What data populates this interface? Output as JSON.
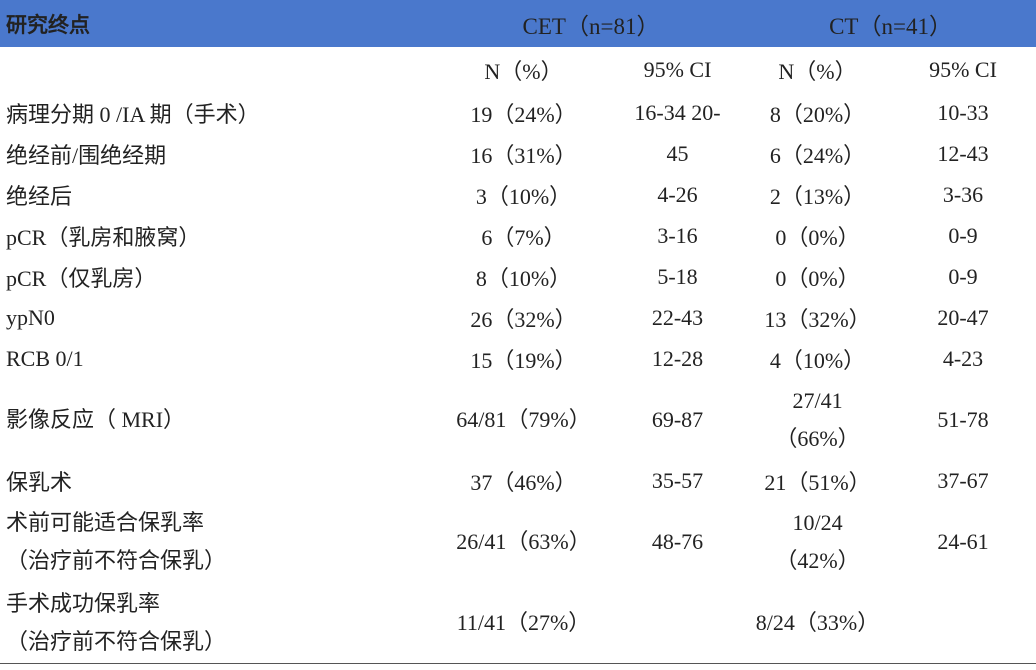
{
  "table": {
    "header": [
      "研究终点",
      "CET（n=81）",
      "CT（n=41）"
    ],
    "sub_header": [
      "N（%）",
      "95% CI",
      "N（%）",
      "95% CI"
    ],
    "rows": [
      [
        [
          "病理分期 0 /IA 期（手术）"
        ],
        [
          "19（24%）"
        ],
        [
          "16-34 20-"
        ],
        [
          "8（20%）"
        ],
        [
          "10-33"
        ]
      ],
      [
        [
          "绝经前/围绝经期"
        ],
        [
          "16（31%）"
        ],
        [
          "45"
        ],
        [
          "6（24%）"
        ],
        [
          "12-43"
        ]
      ],
      [
        [
          "绝经后"
        ],
        [
          "3（10%）"
        ],
        [
          "4-26"
        ],
        [
          "2（13%）"
        ],
        [
          "3-36"
        ]
      ],
      [
        [
          "pCR（乳房和腋窝）"
        ],
        [
          "6（7%）"
        ],
        [
          "3-16"
        ],
        [
          "0（0%）"
        ],
        [
          "0-9"
        ]
      ],
      [
        [
          "pCR（仅乳房）"
        ],
        [
          "8（10%）"
        ],
        [
          "5-18"
        ],
        [
          "0（0%）"
        ],
        [
          "0-9"
        ]
      ],
      [
        [
          "ypN0"
        ],
        [
          "26（32%）"
        ],
        [
          "22-43"
        ],
        [
          "13（32%）"
        ],
        [
          "20-47"
        ]
      ],
      [
        [
          "RCB 0/1"
        ],
        [
          "15（19%）"
        ],
        [
          "12-28"
        ],
        [
          "4（10%）"
        ],
        [
          "4-23"
        ]
      ],
      [
        [
          "影像反应（ MRI）"
        ],
        [
          "64/81（79%）"
        ],
        [
          "69-87"
        ],
        [
          "27/41",
          "（66%）"
        ],
        [
          "51-78"
        ]
      ],
      [
        [
          "保乳术"
        ],
        [
          "37（46%）"
        ],
        [
          "35-57"
        ],
        [
          "21（51%）"
        ],
        [
          "37-67"
        ]
      ],
      [
        [
          "术前可能适合保乳率",
          "（治疗前不符合保乳）"
        ],
        [
          "26/41（63%）"
        ],
        [
          "48-76"
        ],
        [
          "10/24",
          "（42%）"
        ],
        [
          "24-61"
        ]
      ],
      [
        [
          "手术成功保乳率",
          "（治疗前不符合保乳）"
        ],
        [
          "11/41（27%）"
        ],
        null,
        [
          "8/24（33%）"
        ],
        null
      ]
    ]
  }
}
